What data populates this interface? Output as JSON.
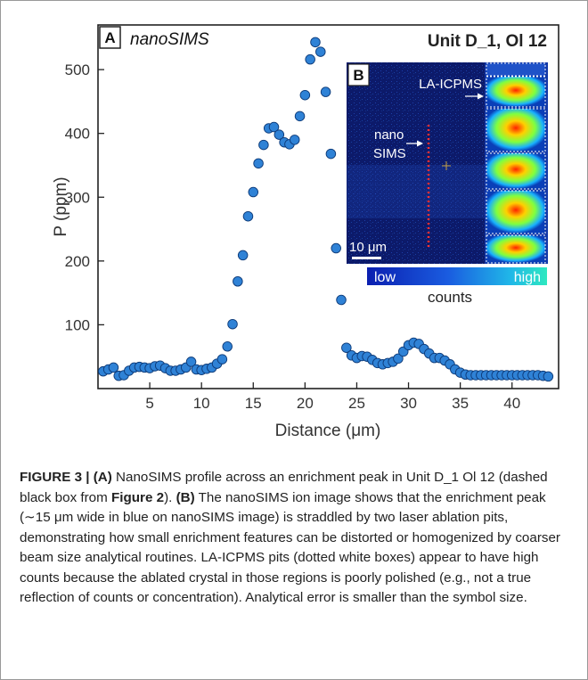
{
  "figure": {
    "panel_a_label": "A",
    "panel_a_title": "nanoSIMS",
    "sample_label": "Unit D_1, Ol 12",
    "inset": {
      "panel_b_label": "B",
      "la_icpms_label": "LA-ICPMS",
      "nanosims_label_line1": "nano",
      "nanosims_label_line2": "SIMS",
      "scale_bar_label": "10 μm",
      "colorbar_low": "low",
      "colorbar_high": "high",
      "colorbar_title": "counts"
    }
  },
  "chart_data": {
    "type": "scatter",
    "xlabel": "Distance (μm)",
    "ylabel": "P (ppm)",
    "xlim": [
      0,
      44.5
    ],
    "ylim": [
      0,
      570
    ],
    "xticks": [
      5,
      10,
      15,
      20,
      25,
      30,
      35,
      40
    ],
    "yticks": [
      100,
      200,
      300,
      400,
      500
    ],
    "marker_color": "#2f82d6",
    "x": [
      0.5,
      1.0,
      1.5,
      2.0,
      2.5,
      3.0,
      3.5,
      4.0,
      4.5,
      5.0,
      5.5,
      6.0,
      6.5,
      7.0,
      7.5,
      8.0,
      8.5,
      9.0,
      9.5,
      10.0,
      10.5,
      11.0,
      11.5,
      12.0,
      12.5,
      13.0,
      13.5,
      14.0,
      14.5,
      15.0,
      15.5,
      16.0,
      16.5,
      17.0,
      17.5,
      18.0,
      18.5,
      19.0,
      19.5,
      20.0,
      20.5,
      21.0,
      21.5,
      22.0,
      22.5,
      23.0,
      23.5,
      24.0,
      24.5,
      25.0,
      25.5,
      26.0,
      26.5,
      27.0,
      27.5,
      28.0,
      28.5,
      29.0,
      29.5,
      30.0,
      30.5,
      31.0,
      31.5,
      32.0,
      32.5,
      33.0,
      33.5,
      34.0,
      34.5,
      35.0,
      35.5,
      36.0,
      36.5,
      37.0,
      37.5,
      38.0,
      38.5,
      39.0,
      39.5,
      40.0,
      40.5,
      41.0,
      41.5,
      42.0,
      42.5,
      43.0,
      43.5
    ],
    "values": [
      27,
      30,
      33,
      20,
      21,
      28,
      33,
      34,
      33,
      32,
      35,
      36,
      32,
      28,
      28,
      30,
      33,
      42,
      30,
      29,
      31,
      33,
      39,
      46,
      66,
      101,
      168,
      209,
      270,
      308,
      353,
      382,
      408,
      410,
      398,
      386,
      383,
      390,
      427,
      460,
      516,
      543,
      528,
      465,
      368,
      220,
      139,
      64,
      52,
      48,
      51,
      50,
      45,
      40,
      38,
      40,
      42,
      47,
      58,
      68,
      72,
      70,
      62,
      55,
      48,
      48,
      44,
      38,
      30,
      25,
      22,
      21,
      21,
      21,
      21,
      21,
      21,
      21,
      21,
      21,
      21,
      21,
      21,
      21,
      21,
      20,
      19
    ]
  },
  "caption": {
    "label": "FIGURE 3 | ",
    "a_marker": "(A)",
    "a_text": " NanoSIMS profile across an enrichment peak in Unit D_1 Ol 12 (dashed black box from ",
    "figref": "Figure 2",
    "a_text_end": "). ",
    "b_marker": "(B)",
    "b_text": " The nanoSIMS ion image shows that the enrichment peak (∼15 μm wide in blue on nanoSIMS image) is straddled by two laser ablation pits, demonstrating how small enrichment features can be distorted or homogenized by coarser beam size analytical routines. LA-ICPMS pits (dotted white boxes) appear to have high counts because the ablated crystal in those regions is poorly polished (e.g., not a true reflection of counts or concentration). Analytical error is smaller than the symbol size."
  }
}
